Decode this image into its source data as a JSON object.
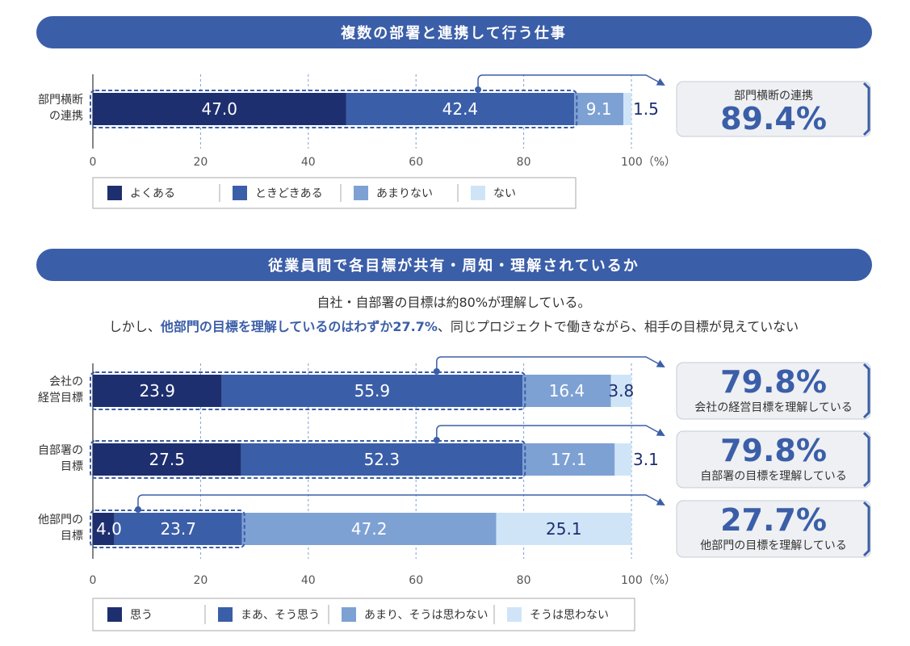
{
  "colors": {
    "banner": "#3b5ea8",
    "s1": "#1e2f6f",
    "s2": "#3b5ea8",
    "s3": "#7ea1d4",
    "s4": "#cfe5f7",
    "accent": "#3b5ea8",
    "callout_bg": "#eef0f3"
  },
  "chart_data": [
    {
      "type": "bar",
      "orientation": "horizontal",
      "stacked": true,
      "title": "複数の部署と連携して行う仕事",
      "categories": [
        "部門横断の連携"
      ],
      "category_lines": [
        [
          "部門横断",
          "の連携"
        ]
      ],
      "series": [
        {
          "name": "よくある",
          "values": [
            47.0
          ]
        },
        {
          "name": "ときどきある",
          "values": [
            42.4
          ]
        },
        {
          "name": "あまりない",
          "values": [
            9.1
          ]
        },
        {
          "name": "ない",
          "values": [
            1.5
          ]
        }
      ],
      "value_labels": [
        [
          "47.0",
          "42.4",
          "9.1",
          "1.5"
        ]
      ],
      "xlim": [
        0,
        100
      ],
      "xticks": [
        "0",
        "20",
        "40",
        "60",
        "80",
        "100（%）"
      ],
      "legend": "bottom",
      "highlight_series_count": [
        2
      ],
      "callouts": [
        {
          "label": "部門横断の連携",
          "value": "89.4%",
          "label_position": "top"
        }
      ]
    },
    {
      "type": "bar",
      "orientation": "horizontal",
      "stacked": true,
      "title": "従業員間で各目標が共有・周知・理解されているか",
      "subtitle": {
        "line1": "自社・自部署の目標は約80%が理解している。",
        "line2_pre": "しかし、",
        "line2_highlight": "他部門の目標を理解しているのはわずか27.7%",
        "line2_post": "、同じプロジェクトで働きながら、相手の目標が見えていない"
      },
      "categories": [
        "会社の経営目標",
        "自部署の目標",
        "他部門の目標"
      ],
      "category_lines": [
        [
          "会社の",
          "経営目標"
        ],
        [
          "自部署の",
          "目標"
        ],
        [
          "他部門の",
          "目標"
        ]
      ],
      "series": [
        {
          "name": "思う",
          "values": [
            23.9,
            27.5,
            4.0
          ]
        },
        {
          "name": "まあ、そう思う",
          "values": [
            55.9,
            52.3,
            23.7
          ]
        },
        {
          "name": "あまり、そうは思わない",
          "values": [
            16.4,
            17.1,
            47.2
          ]
        },
        {
          "name": "そうは思わない",
          "values": [
            3.8,
            3.1,
            25.1
          ]
        }
      ],
      "value_labels": [
        [
          "23.9",
          "55.9",
          "16.4",
          "3.8"
        ],
        [
          "27.5",
          "52.3",
          "17.1",
          "3.1"
        ],
        [
          "4.0",
          "23.7",
          "47.2",
          "25.1"
        ]
      ],
      "xlim": [
        0,
        100
      ],
      "xticks": [
        "0",
        "20",
        "40",
        "60",
        "80",
        "100（%）"
      ],
      "legend": "bottom",
      "highlight_series_count": [
        2,
        2,
        2
      ],
      "callouts": [
        {
          "label": "会社の経営目標を理解している",
          "value": "79.8%",
          "label_position": "bottom"
        },
        {
          "label": "自部署の目標を理解している",
          "value": "79.8%",
          "label_position": "bottom"
        },
        {
          "label": "他部門の目標を理解している",
          "value": "27.7%",
          "label_position": "bottom"
        }
      ]
    }
  ]
}
